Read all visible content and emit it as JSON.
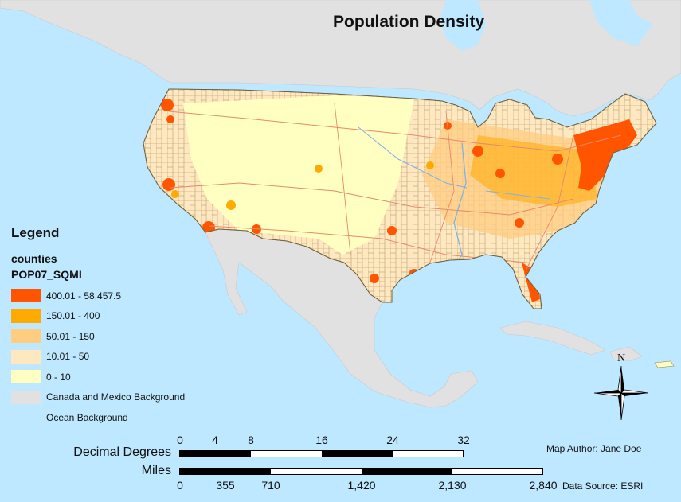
{
  "title": "Population Density",
  "legend": {
    "heading": "Legend",
    "layer": "counties",
    "field": "POP07_SQMI",
    "classes": [
      {
        "label": "400.01 - 58,457.5",
        "color": "#FF5500"
      },
      {
        "label": "150.01 - 400",
        "color": "#FFAA00"
      },
      {
        "label": "50.01 - 150",
        "color": "#FFCC80"
      },
      {
        "label": "10.01 - 50",
        "color": "#FFE8C0"
      },
      {
        "label": "0 - 10",
        "color": "#FFFFC2"
      }
    ],
    "background_layers": [
      {
        "label": "Canada and Mexico Background",
        "color": "#E1E1E1"
      },
      {
        "label": "Ocean Background"
      }
    ]
  },
  "scale_bars": {
    "decimal_degrees": {
      "label": "Decimal Degrees",
      "ticks": [
        "0",
        "4",
        "8",
        "16",
        "24",
        "32"
      ]
    },
    "miles": {
      "label": "Miles",
      "ticks": [
        "0",
        "355",
        "710",
        "1,420",
        "2,130",
        "2,840"
      ]
    }
  },
  "north_arrow": {
    "letter": "N"
  },
  "credits": {
    "author": "Map Author: Jane Doe",
    "source": "Data Source: ESRI"
  },
  "colors": {
    "ocean": "#BEE8FF",
    "land_background": "#E1E1E1",
    "county_border": "#9C8A55",
    "road": "#E8896A",
    "river": "#7FB2E6"
  }
}
